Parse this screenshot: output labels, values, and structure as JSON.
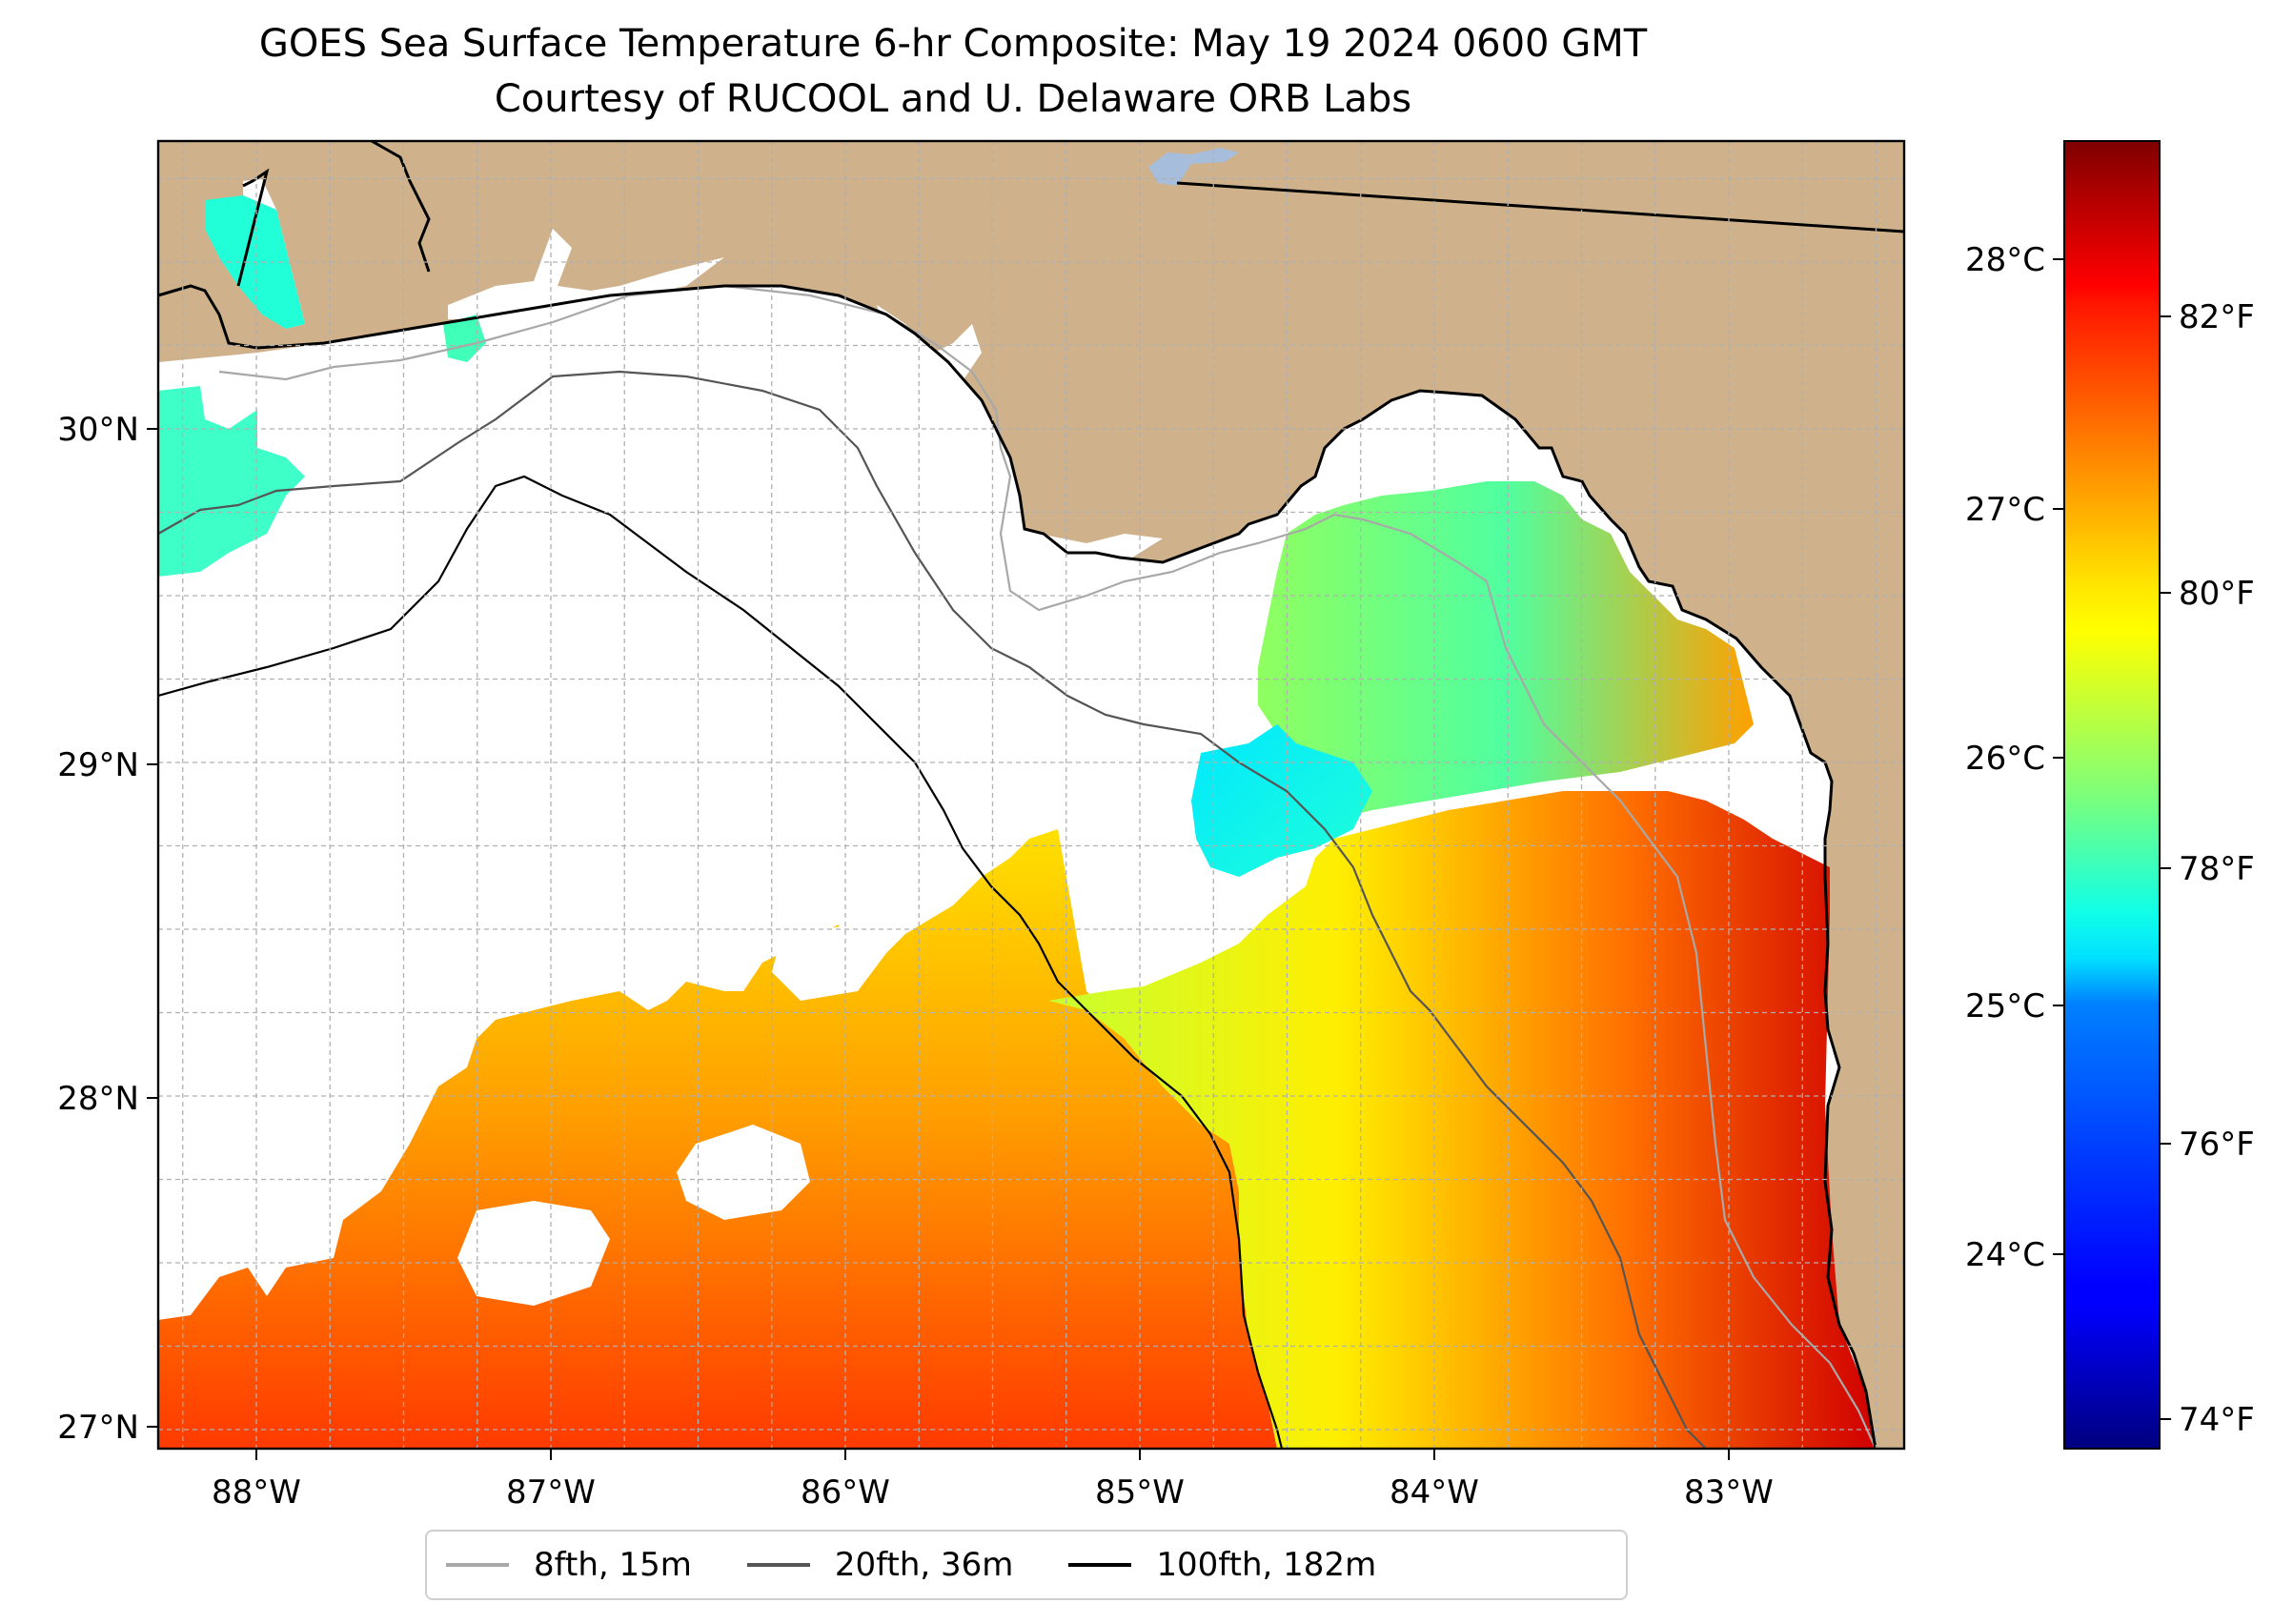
{
  "title": "GOES Sea Surface Temperature 6-hr Composite: May 19 2024 0600 GMT",
  "subtitle": "Courtesy of RUCOOL and U. Delaware ORB Labs",
  "lon_ticks": [
    "88°W",
    "87°W",
    "86°W",
    "85°W",
    "84°W",
    "83°W"
  ],
  "lat_ticks": [
    "30°N",
    "29°N",
    "28°N",
    "27°N"
  ],
  "colorbar": {
    "celsius_ticks": [
      "28°C",
      "27°C",
      "26°C",
      "25°C",
      "24°C"
    ],
    "fahrenheit_ticks": [
      "82°F",
      "80°F",
      "78°F",
      "76°F",
      "74°F"
    ],
    "colormap": "jet",
    "range_f": [
      73.6,
      83.6
    ]
  },
  "legend": [
    {
      "label": "8fth, 15m",
      "color": "#a8a8a8"
    },
    {
      "label": "20fth, 36m",
      "color": "#555555"
    },
    {
      "label": "100fth, 182m",
      "color": "#000000"
    }
  ],
  "colors": {
    "land": "#cfb28b",
    "ocean_no_data": "#ffffff",
    "gridline": "#b0b0b0",
    "lake": "#a6bddb"
  },
  "map_data": {
    "extent": {
      "lon": [
        -88.33,
        -82.4
      ],
      "lat": [
        26.93,
        30.85
      ]
    },
    "projection": "PlateCarree"
  }
}
